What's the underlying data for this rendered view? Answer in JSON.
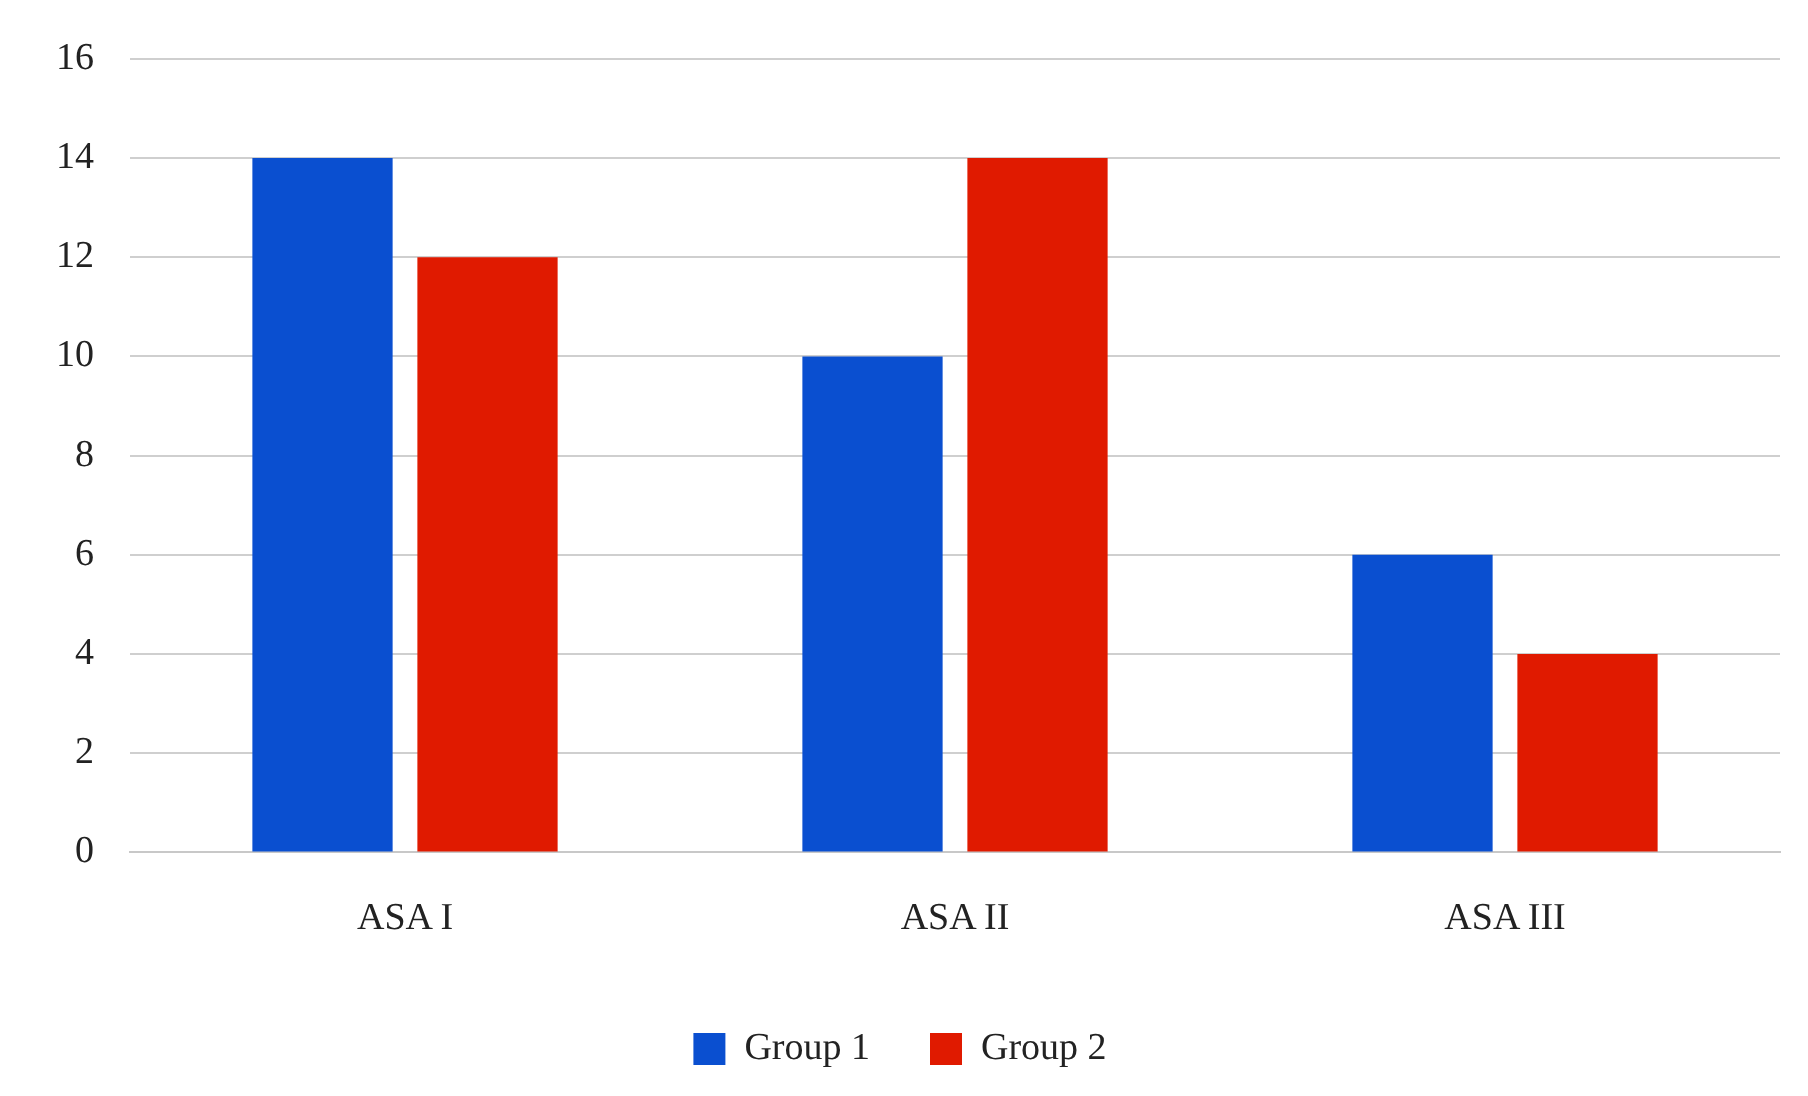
{
  "chart_data": {
    "type": "bar",
    "categories": [
      "ASA I",
      "ASA II",
      "ASA III"
    ],
    "series": [
      {
        "name": "Group 1",
        "color": "#0a4fd0",
        "values": [
          14,
          10,
          6
        ]
      },
      {
        "name": "Group 2",
        "color": "#e01a00",
        "values": [
          12,
          14,
          4
        ]
      }
    ],
    "ylim": [
      0,
      16
    ],
    "yticks": [
      0,
      2,
      4,
      6,
      8,
      10,
      12,
      14,
      16
    ],
    "grid": "y",
    "legend": "bottom"
  }
}
